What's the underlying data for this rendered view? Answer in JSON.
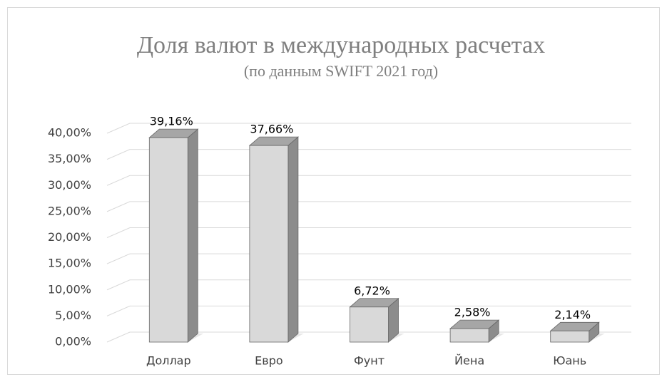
{
  "chart_data": {
    "type": "bar3d",
    "title": "Доля валют в международных расчетах",
    "subtitle": "(по данным SWIFT 2021 год)",
    "categories": [
      "Доллар",
      "Евро",
      "Фунт",
      "Йена",
      "Юань"
    ],
    "values": [
      39.16,
      37.66,
      6.72,
      2.58,
      2.14
    ],
    "value_labels": [
      "39,16%",
      "37,66%",
      "6,72%",
      "2,58%",
      "2,14%"
    ],
    "color": "#d9d9d9",
    "ylim": [
      0,
      40
    ],
    "yticks": [
      {
        "value": 0,
        "label": "0,00%"
      },
      {
        "value": 5,
        "label": "5,00%"
      },
      {
        "value": 10,
        "label": "10,00%"
      },
      {
        "value": 15,
        "label": "15,00%"
      },
      {
        "value": 20,
        "label": "20,00%"
      },
      {
        "value": 25,
        "label": "25,00%"
      },
      {
        "value": 30,
        "label": "30,00%"
      },
      {
        "value": 35,
        "label": "35,00%"
      },
      {
        "value": 40,
        "label": "40,00%"
      }
    ],
    "grid": true
  }
}
